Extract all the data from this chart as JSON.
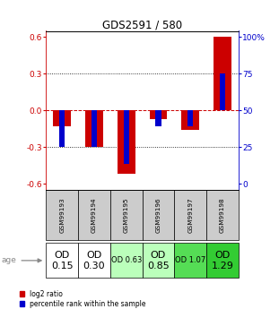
{
  "title": "GDS2591 / 580",
  "samples": [
    "GSM99193",
    "GSM99194",
    "GSM99195",
    "GSM99196",
    "GSM99197",
    "GSM99198"
  ],
  "log2_ratio": [
    -0.13,
    -0.3,
    -0.52,
    -0.07,
    -0.16,
    0.6
  ],
  "percentile_scaled": [
    -0.3,
    -0.3,
    -0.44,
    -0.13,
    -0.13,
    0.3
  ],
  "age_labels": [
    "OD\n0.15",
    "OD\n0.30",
    "OD 0.63",
    "OD\n0.85",
    "OD 1.07",
    "OD\n1.29"
  ],
  "age_fontsize": [
    8,
    8,
    6,
    8,
    6,
    8
  ],
  "age_colors": [
    "#ffffff",
    "#ffffff",
    "#bbffbb",
    "#bbffbb",
    "#55dd55",
    "#33cc33"
  ],
  "bar_color_red": "#cc0000",
  "bar_color_blue": "#0000cc",
  "ylim": [
    -0.65,
    0.65
  ],
  "yticks_left": [
    -0.6,
    -0.3,
    0.0,
    0.3,
    0.6
  ],
  "yticks_right_labels": [
    "0",
    "25",
    "50",
    "75",
    "100%"
  ],
  "dotted_line_color": "#000000",
  "zero_line_color": "#cc0000",
  "bg_color": "#ffffff",
  "sample_bg": "#cccccc",
  "legend_red_label": "log2 ratio",
  "legend_blue_label": "percentile rank within the sample"
}
